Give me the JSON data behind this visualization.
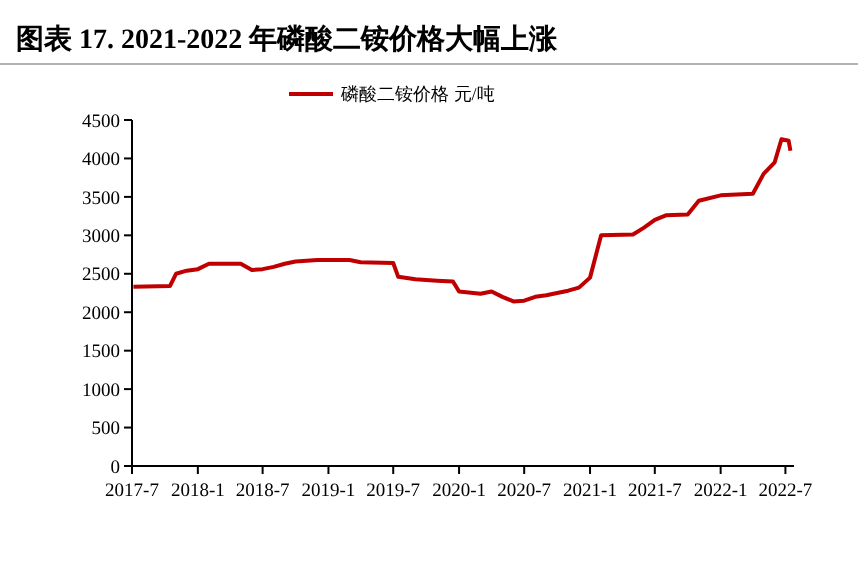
{
  "chart_data": {
    "type": "line",
    "title": "图表 17. 2021-2022 年磷酸二铵价格大幅上涨",
    "x": [
      "2017-07-05",
      "2017-10-15",
      "2017-11-01",
      "2017-12-01",
      "2018-01-01",
      "2018-02-01",
      "2018-05-01",
      "2018-06-01",
      "2018-07-01",
      "2018-08-01",
      "2018-09-01",
      "2018-10-01",
      "2018-12-01",
      "2019-03-01",
      "2019-04-01",
      "2019-07-01",
      "2019-07-15",
      "2019-09-01",
      "2019-11-01",
      "2019-12-15",
      "2020-01-01",
      "2020-03-01",
      "2020-04-01",
      "2020-05-01",
      "2020-06-01",
      "2020-07-01",
      "2020-08-01",
      "2020-09-01",
      "2020-10-01",
      "2020-11-01",
      "2020-12-01",
      "2021-01-01",
      "2021-02-01",
      "2021-05-01",
      "2021-06-01",
      "2021-07-01",
      "2021-08-01",
      "2021-10-01",
      "2021-11-01",
      "2022-01-01",
      "2022-04-01",
      "2022-05-01",
      "2022-06-01",
      "2022-06-20",
      "2022-07-10",
      "2022-07-15"
    ],
    "series": [
      {
        "name": "磷酸二铵价格 元/吨",
        "color": "#c00000",
        "values": [
          2330,
          2340,
          2500,
          2540,
          2560,
          2630,
          2630,
          2550,
          2560,
          2590,
          2630,
          2660,
          2680,
          2680,
          2650,
          2640,
          2460,
          2430,
          2410,
          2400,
          2270,
          2240,
          2270,
          2200,
          2140,
          2150,
          2200,
          2220,
          2250,
          2280,
          2320,
          2450,
          3000,
          3010,
          3100,
          3200,
          3260,
          3270,
          3450,
          3520,
          3540,
          3800,
          3950,
          4250,
          4230,
          4100
        ]
      }
    ],
    "xlim": [
      "2017-07-01",
      "2022-07-25"
    ],
    "xticks": [
      {
        "value": "2017-07",
        "label": "2017-7"
      },
      {
        "value": "2018-01",
        "label": "2018-1"
      },
      {
        "value": "2018-07",
        "label": "2018-7"
      },
      {
        "value": "2019-01",
        "label": "2019-1"
      },
      {
        "value": "2019-07",
        "label": "2019-7"
      },
      {
        "value": "2020-01",
        "label": "2020-1"
      },
      {
        "value": "2020-07",
        "label": "2020-7"
      },
      {
        "value": "2021-01",
        "label": "2021-1"
      },
      {
        "value": "2021-07",
        "label": "2021-7"
      },
      {
        "value": "2022-01",
        "label": "2022-1"
      },
      {
        "value": "2022-07",
        "label": "2022-7"
      }
    ],
    "ylim": [
      0,
      4500
    ],
    "yticks": [
      0,
      500,
      1000,
      1500,
      2000,
      2500,
      3000,
      3500,
      4000,
      4500
    ],
    "grid": false,
    "legend": "top",
    "marker": "none",
    "line_style": "solid"
  }
}
